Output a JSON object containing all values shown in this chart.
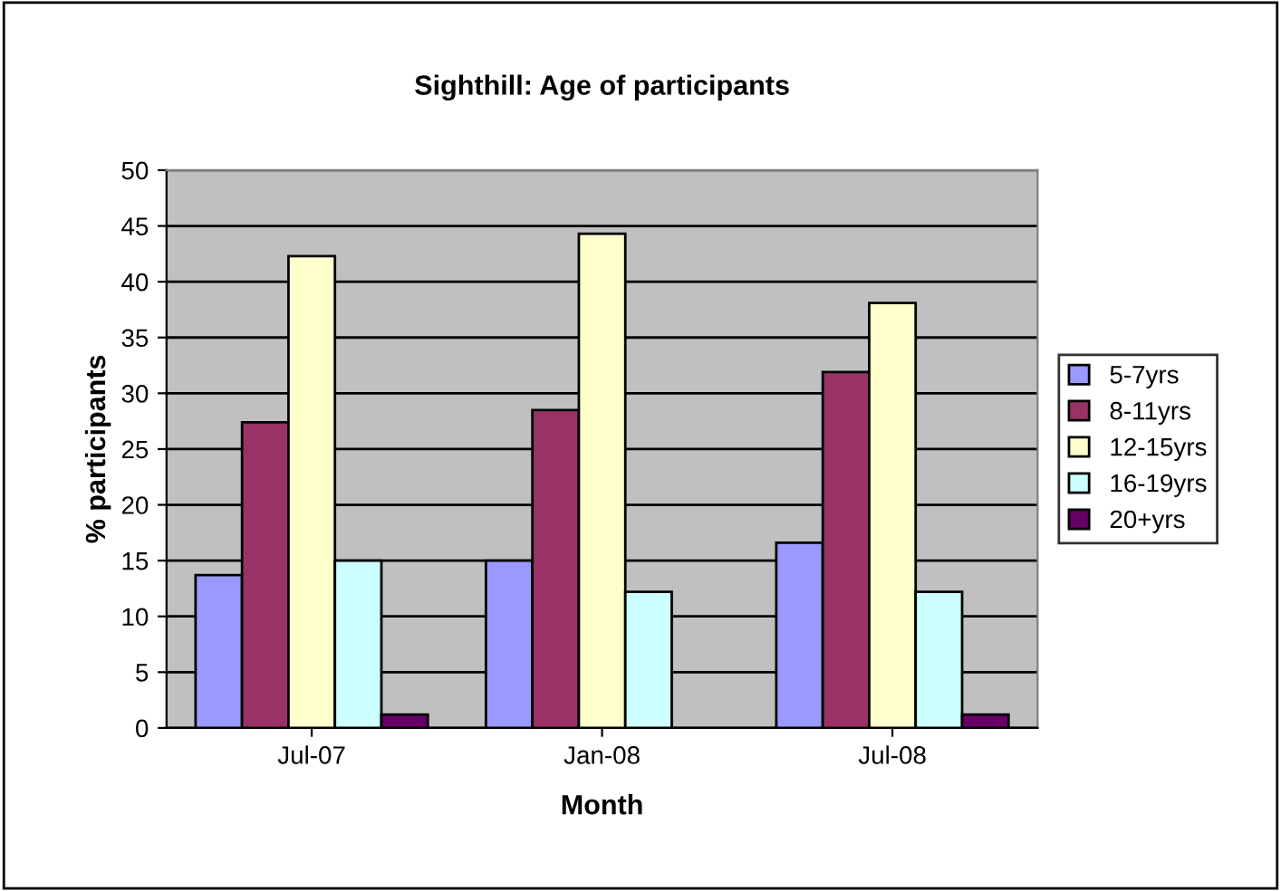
{
  "chart_data": {
    "type": "bar",
    "title": "Sighthill: Age of participants",
    "xlabel": "Month",
    "ylabel": "% participants",
    "categories": [
      "Jul-07",
      "Jan-08",
      "Jul-08"
    ],
    "series": [
      {
        "name": "5-7yrs",
        "color": "#9999ff",
        "values": [
          13.7,
          15.0,
          16.6
        ]
      },
      {
        "name": "8-11yrs",
        "color": "#993366",
        "values": [
          27.4,
          28.5,
          31.9
        ]
      },
      {
        "name": "12-15yrs",
        "color": "#ffffcc",
        "values": [
          42.3,
          44.3,
          38.1
        ]
      },
      {
        "name": "16-19yrs",
        "color": "#ccffff",
        "values": [
          15.0,
          12.2,
          12.2
        ]
      },
      {
        "name": "20+yrs",
        "color": "#660066",
        "values": [
          1.2,
          null,
          1.2
        ]
      }
    ],
    "ylim": [
      0,
      50
    ],
    "yticks": [
      0,
      5,
      10,
      15,
      20,
      25,
      30,
      35,
      40,
      45,
      50
    ],
    "grid": "y",
    "legend": "right"
  }
}
